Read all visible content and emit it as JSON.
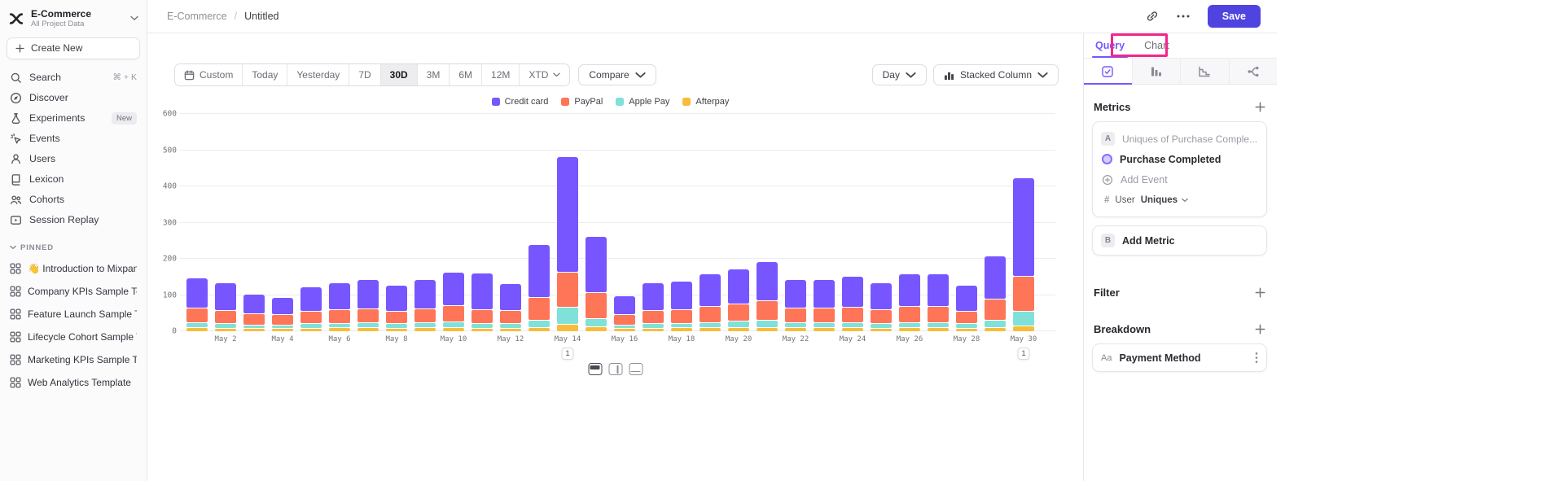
{
  "app": {
    "accent_color": "#7856FF",
    "save_color": "#4F44E0",
    "highlight_color": "#F5258C"
  },
  "sidebar": {
    "workspace_name": "E-Commerce",
    "workspace_subtitle": "All Project Data",
    "create_new_label": "Create New",
    "nav_items": [
      {
        "label": "Search",
        "icon": "search",
        "shortcut": "⌘ + K"
      },
      {
        "label": "Discover",
        "icon": "discover"
      },
      {
        "label": "Experiments",
        "icon": "experiments",
        "badge": "New"
      },
      {
        "label": "Events",
        "icon": "events"
      },
      {
        "label": "Users",
        "icon": "users"
      },
      {
        "label": "Lexicon",
        "icon": "lexicon"
      },
      {
        "label": "Cohorts",
        "icon": "cohorts"
      },
      {
        "label": "Session Replay",
        "icon": "session-replay"
      }
    ],
    "pinned_header": "PINNED",
    "pinned_items": [
      {
        "label": "👋 Introduction to Mixpanel Bo",
        "icon": "board-grid"
      },
      {
        "label": "Company KPIs Sample Templat",
        "icon": "board-grid"
      },
      {
        "label": "Feature Launch Sample Templa",
        "icon": "board-grid"
      },
      {
        "label": "Lifecycle Cohort Sample Temp",
        "icon": "board-grid"
      },
      {
        "label": "Marketing KPIs Sample Templat",
        "icon": "board-grid"
      },
      {
        "label": "Web Analytics Template",
        "icon": "board-grid"
      }
    ]
  },
  "topbar": {
    "breadcrumb": {
      "project": "E-Commerce",
      "separator": "/",
      "page": "Untitled"
    },
    "save_label": "Save"
  },
  "toolbar": {
    "date_ranges": [
      {
        "label": "Custom",
        "icon": "calendar"
      },
      {
        "label": "Today"
      },
      {
        "label": "Yesterday"
      },
      {
        "label": "7D"
      },
      {
        "label": "30D",
        "active": true
      },
      {
        "label": "3M"
      },
      {
        "label": "6M"
      },
      {
        "label": "12M"
      },
      {
        "label": "XTD",
        "chevron": true
      }
    ],
    "compare_label": "Compare",
    "granularity_label": "Day",
    "chart_type_label": "Stacked Column"
  },
  "right_panel": {
    "tabs": [
      {
        "label": "Query",
        "active": true
      },
      {
        "label": "Chart",
        "active": false
      }
    ],
    "icon_tabs": [
      "insights",
      "funnels",
      "retention",
      "flows"
    ],
    "metrics_section_label": "Metrics",
    "metric_card": {
      "badge": "A",
      "summary": "Uniques of Purchase Comple...",
      "event_label": "Purchase Completed",
      "add_event_label": "Add Event",
      "hash": "#",
      "entity_label": "User",
      "aggregation_label": "Uniques"
    },
    "add_metric": {
      "badge": "B",
      "label": "Add Metric"
    },
    "filter_section_label": "Filter",
    "breakdown_section_label": "Breakdown",
    "breakdown_card": {
      "prefix": "Aa",
      "label": "Payment Method"
    }
  },
  "chart_data": {
    "type": "bar",
    "stacked": true,
    "title": "",
    "x": [
      "May 1",
      "May 2",
      "May 3",
      "May 4",
      "May 5",
      "May 6",
      "May 7",
      "May 8",
      "May 9",
      "May 10",
      "May 11",
      "May 12",
      "May 13",
      "May 14",
      "May 15",
      "May 16",
      "May 17",
      "May 18",
      "May 19",
      "May 20",
      "May 21",
      "May 22",
      "May 23",
      "May 24",
      "May 25",
      "May 26",
      "May 27",
      "May 28",
      "May 29",
      "May 30"
    ],
    "x_tick_labels": [
      "May 2",
      "May 4",
      "May 6",
      "May 8",
      "May 10",
      "May 12",
      "May 14",
      "May 16",
      "May 18",
      "May 20",
      "May 22",
      "May 24",
      "May 26",
      "May 28",
      "May 30"
    ],
    "series": [
      {
        "name": "Credit card",
        "color": "#7856FF",
        "values": [
          82,
          74,
          53,
          45,
          66,
          71,
          78,
          70,
          78,
          89,
          100,
          73,
          144,
          317,
          153,
          50,
          73,
          75,
          87,
          95,
          106,
          77,
          77,
          84,
          72,
          87,
          87,
          70,
          116,
          268
        ]
      },
      {
        "name": "PayPal",
        "color": "#FF7557",
        "values": [
          38,
          34,
          28,
          26,
          32,
          35,
          37,
          33,
          37,
          43,
          35,
          34,
          60,
          95,
          70,
          26,
          35,
          36,
          42,
          46,
          52,
          38,
          38,
          40,
          35,
          42,
          42,
          33,
          56,
          95
        ]
      },
      {
        "name": "Apple Pay",
        "color": "#80E1D9",
        "values": [
          12,
          10,
          8,
          8,
          10,
          11,
          12,
          10,
          12,
          14,
          11,
          10,
          18,
          45,
          20,
          8,
          10,
          11,
          13,
          15,
          17,
          12,
          12,
          13,
          11,
          13,
          13,
          10,
          18,
          38
        ]
      },
      {
        "name": "Afterpay",
        "color": "#F8BC3C",
        "values": [
          8,
          7,
          6,
          6,
          7,
          8,
          8,
          7,
          8,
          9,
          7,
          7,
          10,
          18,
          12,
          6,
          7,
          8,
          8,
          9,
          10,
          8,
          8,
          8,
          7,
          8,
          8,
          7,
          10,
          14
        ]
      }
    ],
    "stack_order_bottom_to_top": [
      "Afterpay",
      "Apple Pay",
      "PayPal",
      "Credit card"
    ],
    "ylim": [
      0,
      600
    ],
    "yticks": [
      0,
      100,
      200,
      300,
      400,
      500,
      600
    ],
    "grid": true,
    "legend_position": "top",
    "annotations": [
      {
        "x": "May 14",
        "label": "1"
      },
      {
        "x": "May 30",
        "label": "1"
      }
    ]
  }
}
